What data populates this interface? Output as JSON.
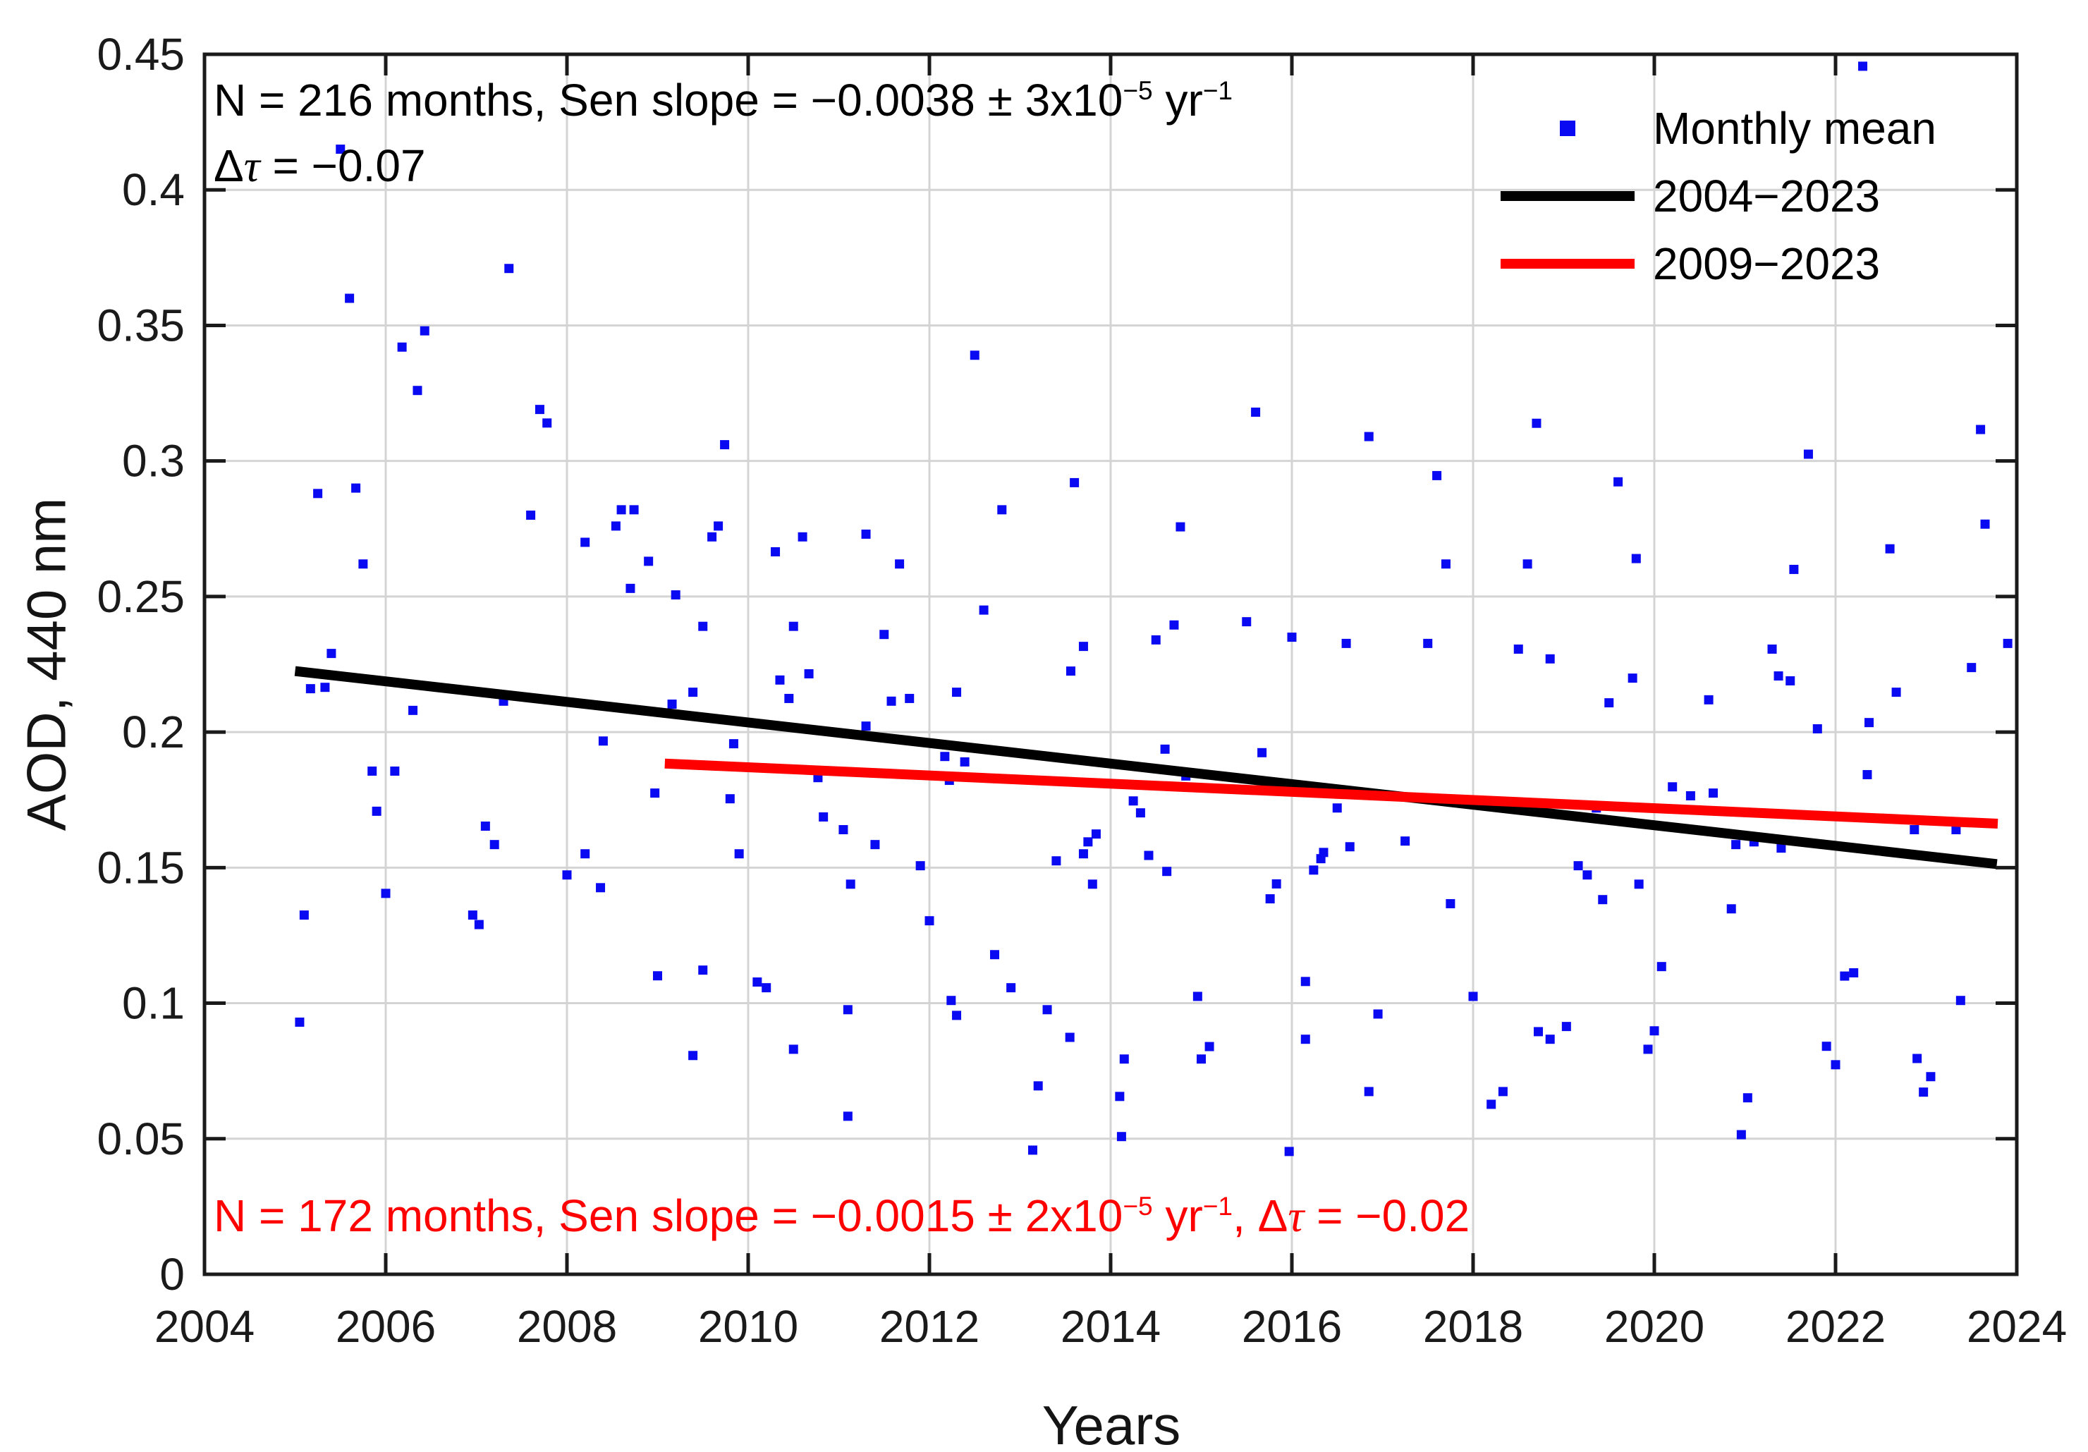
{
  "chart_data": {
    "type": "scatter",
    "title": "",
    "xlabel": "Years",
    "ylabel": "AOD, 440 nm",
    "xlim": [
      2004,
      2024
    ],
    "ylim": [
      0,
      0.45
    ],
    "x_ticks": [
      2004,
      2006,
      2008,
      2010,
      2012,
      2014,
      2016,
      2018,
      2020,
      2022,
      2024
    ],
    "x_tick_labels": [
      "2004",
      "2006",
      "2008",
      "2010",
      "2012",
      "2014",
      "2016",
      "2018",
      "2020",
      "2022",
      "2024"
    ],
    "y_ticks": [
      0,
      0.05,
      0.1,
      0.15,
      0.2,
      0.25,
      0.3,
      0.35,
      0.4,
      0.45
    ],
    "y_tick_labels": [
      "0",
      "0.05",
      "0.1",
      "0.15",
      "0.2",
      "0.25",
      "0.3",
      "0.35",
      "0.4",
      "0.45"
    ],
    "grid": true,
    "legend": {
      "position": "top-right",
      "entries": [
        {
          "label": "Monthly mean",
          "swatch": "marker",
          "color": "#0a0af2"
        },
        {
          "label": "2004−2023",
          "swatch": "line",
          "color": "#000000"
        },
        {
          "label": "2009−2023",
          "swatch": "line",
          "color": "#ff0000"
        }
      ]
    },
    "colors": {
      "points": "#0a0af2",
      "trend_2004_2023": "#000000",
      "trend_2009_2023": "#ff0000",
      "axis": "#1a1a1a",
      "grid": "#d4d4d4",
      "annotation_black": "#000000",
      "annotation_red": "#ff0000"
    },
    "trend_lines": [
      {
        "name": "2004−2023",
        "color": "#000000",
        "start": [
          2005.0,
          0.2225
        ],
        "end": [
          2023.78,
          0.1513
        ]
      },
      {
        "name": "2009−2023",
        "color": "#ff0000",
        "start": [
          2009.08,
          0.1884
        ],
        "end": [
          2023.79,
          0.1662
        ]
      }
    ],
    "annotations": [
      {
        "id": "stats-2004-2023",
        "color": "#000000",
        "lines": [
          [
            {
              "t": "N = 216 months, Sen slope = −0.0038 ± 3x10"
            },
            {
              "t": "−5",
              "sup": true
            },
            {
              "t": " yr"
            },
            {
              "t": "−1",
              "sup": true
            }
          ],
          [
            {
              "t": "Δ"
            },
            {
              "t": "τ",
              "italic": true
            },
            {
              "t": " = −0.07"
            }
          ]
        ]
      },
      {
        "id": "stats-2009-2023",
        "color": "#ff0000",
        "lines": [
          [
            {
              "t": "N = 172 months, Sen slope = −0.0015 ± 2x10"
            },
            {
              "t": "−5",
              "sup": true
            },
            {
              "t": " yr"
            },
            {
              "t": "−1",
              "sup": true
            },
            {
              "t": ", Δ"
            },
            {
              "t": "τ",
              "italic": true
            },
            {
              "t": " = −0.02"
            }
          ]
        ]
      }
    ],
    "series": [
      {
        "name": "Monthly mean",
        "marker": "square",
        "color": "#0a0af2",
        "points": [
          [
            2005.05,
            0.093
          ],
          [
            2005.1,
            0.1325
          ],
          [
            2005.17,
            0.216
          ],
          [
            2005.25,
            0.288
          ],
          [
            2005.33,
            0.2165
          ],
          [
            2005.4,
            0.229
          ],
          [
            2005.5,
            0.415
          ],
          [
            2005.6,
            0.36
          ],
          [
            2005.67,
            0.29
          ],
          [
            2005.75,
            0.262
          ],
          [
            2005.85,
            0.1856
          ],
          [
            2005.9,
            0.1708
          ],
          [
            2006.0,
            0.1405
          ],
          [
            2006.1,
            0.1856
          ],
          [
            2006.18,
            0.342
          ],
          [
            2006.3,
            0.208
          ],
          [
            2006.35,
            0.326
          ],
          [
            2006.43,
            0.348
          ],
          [
            2006.96,
            0.1325
          ],
          [
            2007.03,
            0.129
          ],
          [
            2007.1,
            0.1653
          ],
          [
            2007.2,
            0.1585
          ],
          [
            2007.3,
            0.2114
          ],
          [
            2007.36,
            0.371
          ],
          [
            2007.6,
            0.28
          ],
          [
            2007.7,
            0.319
          ],
          [
            2007.78,
            0.314
          ],
          [
            2008.0,
            0.1473
          ],
          [
            2008.2,
            0.27
          ],
          [
            2008.2,
            0.1551
          ],
          [
            2008.37,
            0.1426
          ],
          [
            2008.4,
            0.1967
          ],
          [
            2008.54,
            0.276
          ],
          [
            2008.6,
            0.282
          ],
          [
            2008.7,
            0.253
          ],
          [
            2008.74,
            0.282
          ],
          [
            2008.9,
            0.263
          ],
          [
            2008.97,
            0.1775
          ],
          [
            2009.0,
            0.1101
          ],
          [
            2009.16,
            0.2103
          ],
          [
            2009.2,
            0.2506
          ],
          [
            2009.39,
            0.2147
          ],
          [
            2009.39,
            0.0807
          ],
          [
            2009.5,
            0.239
          ],
          [
            2009.5,
            0.1122
          ],
          [
            2009.6,
            0.272
          ],
          [
            2009.67,
            0.276
          ],
          [
            2009.74,
            0.306
          ],
          [
            2009.8,
            0.1754
          ],
          [
            2009.84,
            0.1957
          ],
          [
            2009.9,
            0.1551
          ],
          [
            2010.1,
            0.1078
          ],
          [
            2010.2,
            0.1057
          ],
          [
            2010.3,
            0.2665
          ],
          [
            2010.35,
            0.2192
          ],
          [
            2010.45,
            0.2124
          ],
          [
            2010.5,
            0.239
          ],
          [
            2010.5,
            0.083
          ],
          [
            2010.6,
            0.272
          ],
          [
            2010.67,
            0.2215
          ],
          [
            2010.77,
            0.1832
          ],
          [
            2010.83,
            0.1687
          ],
          [
            2011.05,
            0.164
          ],
          [
            2011.1,
            0.0976
          ],
          [
            2011.1,
            0.0583
          ],
          [
            2011.13,
            0.1439
          ],
          [
            2011.3,
            0.273
          ],
          [
            2011.3,
            0.2022
          ],
          [
            2011.4,
            0.1585
          ],
          [
            2011.5,
            0.236
          ],
          [
            2011.58,
            0.2114
          ],
          [
            2011.67,
            0.262
          ],
          [
            2011.78,
            0.2124
          ],
          [
            2011.84,
            0.1843
          ],
          [
            2011.9,
            0.1507
          ],
          [
            2012.0,
            0.1304
          ],
          [
            2012.17,
            0.191
          ],
          [
            2012.22,
            0.1822
          ],
          [
            2012.24,
            0.101
          ],
          [
            2012.3,
            0.2147
          ],
          [
            2012.3,
            0.0955
          ],
          [
            2012.39,
            0.189
          ],
          [
            2012.5,
            0.339
          ],
          [
            2012.6,
            0.245
          ],
          [
            2012.72,
            0.1179
          ],
          [
            2012.8,
            0.282
          ],
          [
            2012.9,
            0.1057
          ],
          [
            2013.14,
            0.0458
          ],
          [
            2013.2,
            0.0695
          ],
          [
            2013.3,
            0.0976
          ],
          [
            2013.4,
            0.1525
          ],
          [
            2013.55,
            0.0874
          ],
          [
            2013.56,
            0.2225
          ],
          [
            2013.6,
            0.292
          ],
          [
            2013.7,
            0.2316
          ],
          [
            2013.7,
            0.1551
          ],
          [
            2013.75,
            0.1595
          ],
          [
            2013.8,
            0.1439
          ],
          [
            2013.84,
            0.1624
          ],
          [
            2014.1,
            0.0656
          ],
          [
            2014.12,
            0.0508
          ],
          [
            2014.15,
            0.0794
          ],
          [
            2014.25,
            0.1746
          ],
          [
            2014.33,
            0.1702
          ],
          [
            2014.42,
            0.1545
          ],
          [
            2014.5,
            0.234
          ],
          [
            2014.6,
            0.1937
          ],
          [
            2014.62,
            0.1486
          ],
          [
            2014.7,
            0.2395
          ],
          [
            2014.77,
            0.2757
          ],
          [
            2014.83,
            0.1838
          ],
          [
            2014.96,
            0.1025
          ],
          [
            2015.0,
            0.0794
          ],
          [
            2015.09,
            0.084
          ],
          [
            2015.5,
            0.2407
          ],
          [
            2015.6,
            0.318
          ],
          [
            2015.67,
            0.1924
          ],
          [
            2015.76,
            0.1385
          ],
          [
            2015.83,
            0.144
          ],
          [
            2015.97,
            0.0453
          ],
          [
            2016.0,
            0.235
          ],
          [
            2016.15,
            0.108
          ],
          [
            2016.15,
            0.0867
          ],
          [
            2016.24,
            0.1491
          ],
          [
            2016.32,
            0.1533
          ],
          [
            2016.35,
            0.1556
          ],
          [
            2016.5,
            0.172
          ],
          [
            2016.6,
            0.2327
          ],
          [
            2016.64,
            0.1577
          ],
          [
            2016.85,
            0.309
          ],
          [
            2016.85,
            0.0674
          ],
          [
            2016.95,
            0.096
          ],
          [
            2017.25,
            0.1598
          ],
          [
            2017.5,
            0.2327
          ],
          [
            2017.6,
            0.2946
          ],
          [
            2017.7,
            0.262
          ],
          [
            2017.75,
            0.1367
          ],
          [
            2018.0,
            0.1025
          ],
          [
            2018.2,
            0.0627
          ],
          [
            2018.33,
            0.0674
          ],
          [
            2018.5,
            0.2306
          ],
          [
            2018.6,
            0.262
          ],
          [
            2018.7,
            0.3139
          ],
          [
            2018.72,
            0.0895
          ],
          [
            2018.85,
            0.227
          ],
          [
            2018.85,
            0.0867
          ],
          [
            2019.03,
            0.0914
          ],
          [
            2019.16,
            0.1507
          ],
          [
            2019.26,
            0.1473
          ],
          [
            2019.36,
            0.172
          ],
          [
            2019.43,
            0.1382
          ],
          [
            2019.5,
            0.2108
          ],
          [
            2019.6,
            0.2923
          ],
          [
            2019.76,
            0.2199
          ],
          [
            2019.8,
            0.264
          ],
          [
            2019.83,
            0.1439
          ],
          [
            2019.93,
            0.083
          ],
          [
            2020.0,
            0.0898
          ],
          [
            2020.08,
            0.1135
          ],
          [
            2020.2,
            0.1798
          ],
          [
            2020.4,
            0.1765
          ],
          [
            2020.6,
            0.2119
          ],
          [
            2020.65,
            0.1775
          ],
          [
            2020.85,
            0.1348
          ],
          [
            2020.9,
            0.1585
          ],
          [
            2020.96,
            0.0515
          ],
          [
            2021.03,
            0.0651
          ],
          [
            2021.1,
            0.1595
          ],
          [
            2021.3,
            0.2306
          ],
          [
            2021.37,
            0.2207
          ],
          [
            2021.4,
            0.1572
          ],
          [
            2021.5,
            0.2189
          ],
          [
            2021.54,
            0.26
          ],
          [
            2021.7,
            0.3025
          ],
          [
            2021.8,
            0.2012
          ],
          [
            2021.9,
            0.0841
          ],
          [
            2022.0,
            0.0773
          ],
          [
            2022.1,
            0.11
          ],
          [
            2022.2,
            0.1112
          ],
          [
            2022.3,
            0.4456
          ],
          [
            2022.35,
            0.1843
          ],
          [
            2022.37,
            0.2035
          ],
          [
            2022.6,
            0.2676
          ],
          [
            2022.67,
            0.2147
          ],
          [
            2022.87,
            0.164
          ],
          [
            2022.9,
            0.0796
          ],
          [
            2022.97,
            0.0672
          ],
          [
            2023.05,
            0.0729
          ],
          [
            2023.33,
            0.164
          ],
          [
            2023.38,
            0.101
          ],
          [
            2023.5,
            0.2238
          ],
          [
            2023.6,
            0.3116
          ],
          [
            2023.65,
            0.2767
          ],
          [
            2023.9,
            0.2327
          ]
        ]
      }
    ]
  }
}
